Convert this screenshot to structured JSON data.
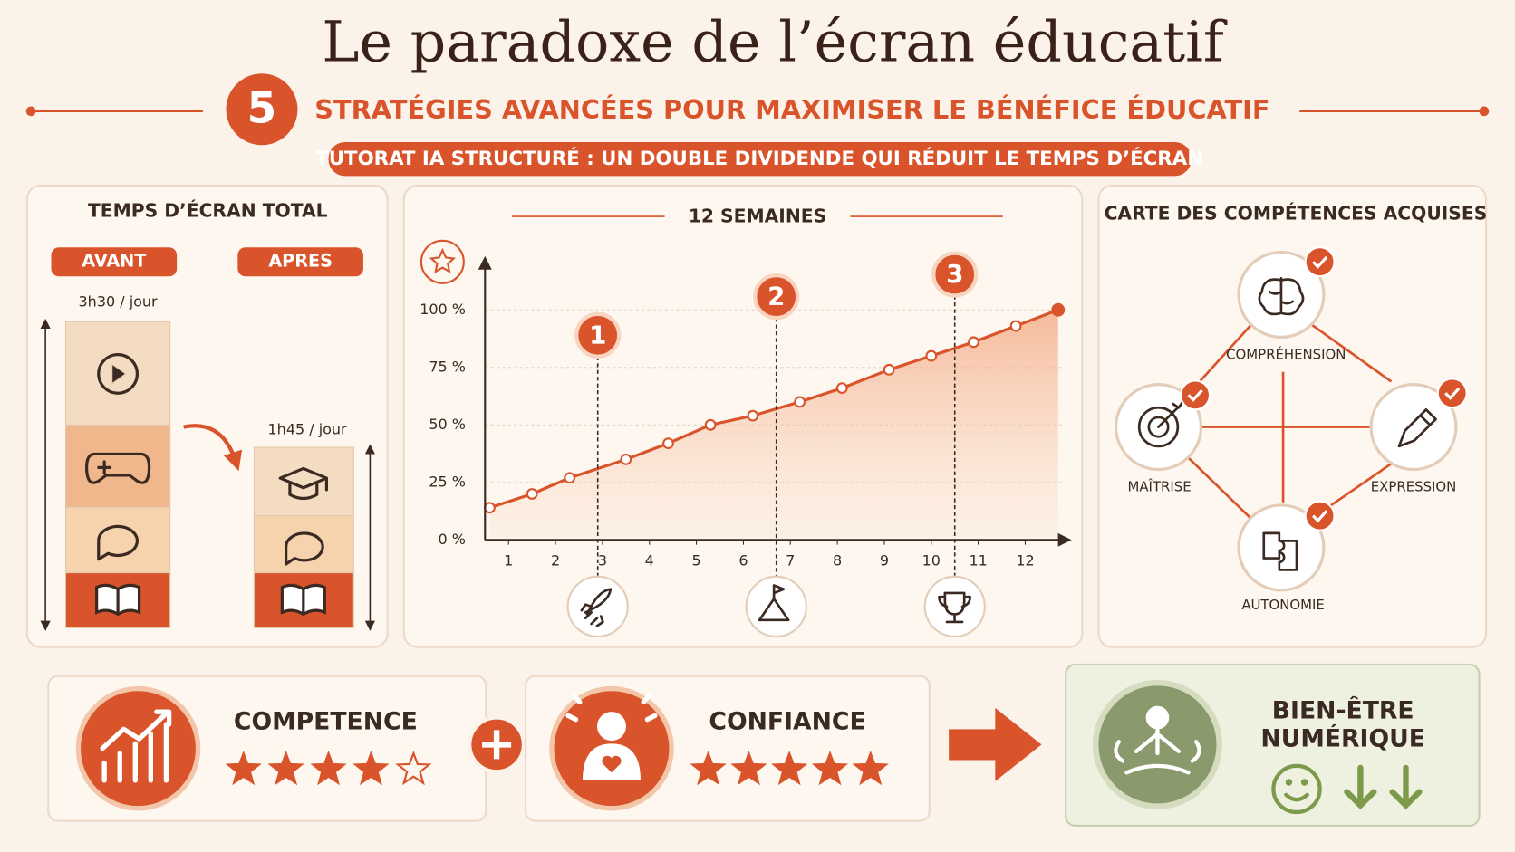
{
  "header": {
    "title": "Le paradoxe de l’écran éducatif",
    "number": "5",
    "subtitle": "STRATÉGIES AVANCÉES POUR MAXIMISER LE BÉNÉFICE ÉDUCATIF",
    "banner": "TUTORAT IA STRUCTURÉ : UN DOUBLE DIVIDENDE QUI RÉDUIT LE TEMPS D’ÉCRAN"
  },
  "screen_time": {
    "title": "TEMPS D’ÉCRAN TOTAL",
    "before": {
      "label": "AVANT",
      "value": "3h30 / jour"
    },
    "after": {
      "label": "APRES",
      "value": "1h45 / jour"
    }
  },
  "chart_data": {
    "type": "line",
    "title": "12 SEMAINES",
    "x": [
      0.6,
      1.5,
      2.3,
      3.5,
      4.4,
      5.3,
      6.2,
      7.2,
      8.1,
      9.1,
      10,
      10.9,
      11.8,
      12.7
    ],
    "values": [
      14,
      20,
      27,
      35,
      42,
      50,
      54,
      60,
      66,
      74,
      80,
      86,
      93,
      100
    ],
    "color": "#d9542b",
    "area": true,
    "xlim": [
      0.5,
      12.8
    ],
    "xticks": [
      1,
      2,
      3,
      4,
      5,
      6,
      7,
      8,
      9,
      10,
      11,
      12
    ],
    "ylim": [
      0,
      115
    ],
    "yticks": [
      {
        "value": 0,
        "label": "0 %"
      },
      {
        "value": 25,
        "label": "25 %"
      },
      {
        "value": 50,
        "label": "50 %"
      },
      {
        "value": 75,
        "label": "75 %"
      },
      {
        "value": 100,
        "label": "100 %"
      }
    ],
    "grid": true,
    "markers": [
      {
        "label": "1",
        "x": 2.9
      },
      {
        "label": "2",
        "x": 6.7
      },
      {
        "label": "3",
        "x": 10.5
      }
    ]
  },
  "skills": {
    "title": "CARTE DES COMPÉTENCES ACQUISES",
    "nodes": [
      {
        "label": "COMPRÉHENSION"
      },
      {
        "label": "MAÎTRISE"
      },
      {
        "label": "EXPRESSION"
      },
      {
        "label": "AUTONOMIE"
      }
    ]
  },
  "outcomes": [
    {
      "label": "COMPETENCE",
      "stars": 4,
      "max_stars": 5
    },
    {
      "label": "CONFIANCE",
      "stars": 5,
      "max_stars": 5
    }
  ],
  "result": {
    "lines": [
      "BIEN-ÊTRE",
      "NUMÉRIQUE"
    ]
  }
}
